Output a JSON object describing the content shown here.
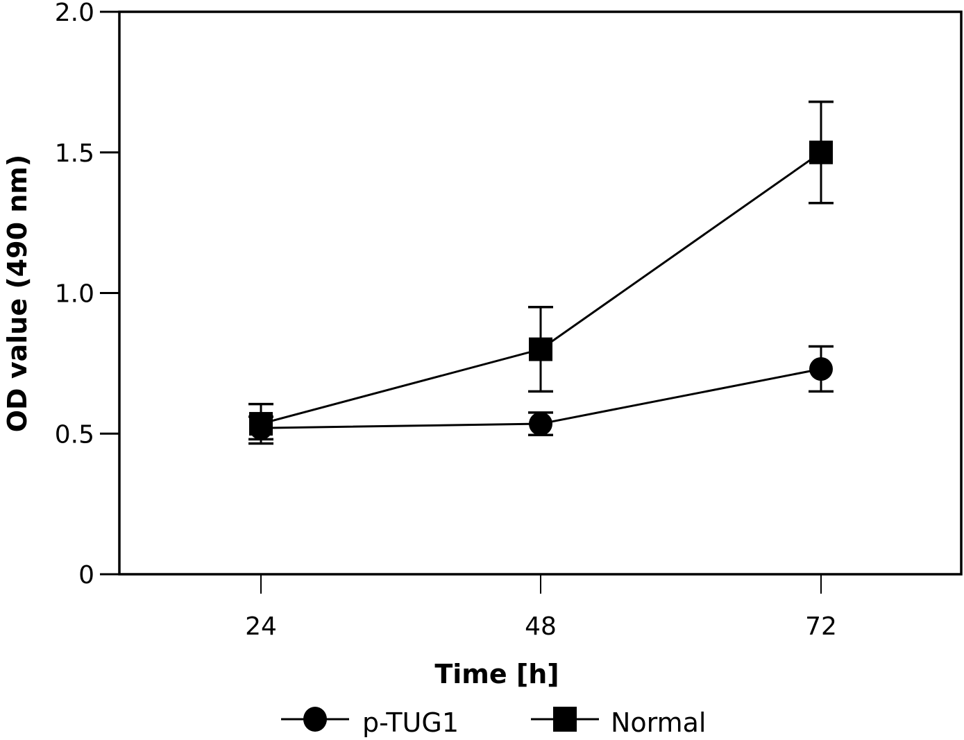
{
  "chart_data": {
    "type": "line",
    "title": "",
    "xlabel": "Time [h]",
    "ylabel": "OD value (490 nm)",
    "x": [
      24,
      48,
      72
    ],
    "x_tick_labels": [
      "24",
      "48",
      "72"
    ],
    "y_ticks": [
      0,
      0.5,
      1.0,
      1.5,
      2.0
    ],
    "y_tick_labels": [
      "0",
      "0.5",
      "1.0",
      "1.5",
      "2.0"
    ],
    "ylim": [
      0,
      2.0
    ],
    "grid": false,
    "legend_position": "bottom-center",
    "series": [
      {
        "name": "p-TUG1",
        "marker": "circle",
        "color": "#000000",
        "values": [
          0.52,
          0.535,
          0.73
        ],
        "errors": [
          0.04,
          0.04,
          0.08
        ]
      },
      {
        "name": "Normal",
        "marker": "square",
        "color": "#000000",
        "values": [
          0.535,
          0.8,
          1.5
        ],
        "errors": [
          0.07,
          0.15,
          0.18
        ]
      }
    ]
  }
}
